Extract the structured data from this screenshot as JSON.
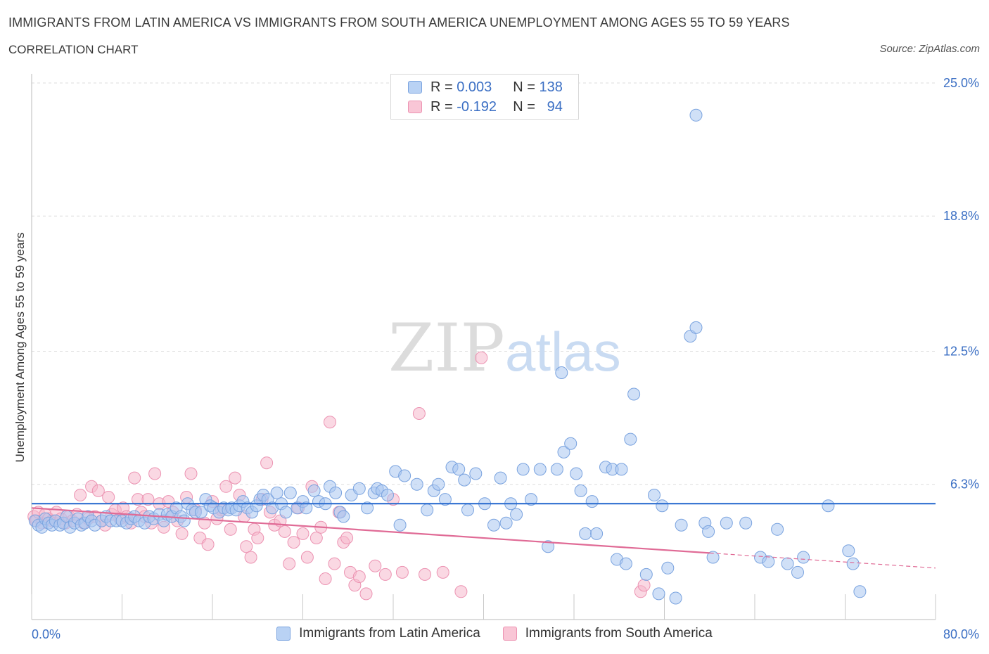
{
  "title": "IMMIGRANTS FROM LATIN AMERICA VS IMMIGRANTS FROM SOUTH AMERICA UNEMPLOYMENT AMONG AGES 55 TO 59 YEARS",
  "subtitle": "CORRELATION CHART",
  "source": "Source: ZipAtlas.com",
  "watermark": {
    "zip": "ZIP",
    "atlas": "atlas"
  },
  "colors": {
    "blue_fill": "#aac6f0",
    "blue_stroke": "#7aa3df",
    "blue_line": "#2f6fd0",
    "pink_fill": "#f6b8cc",
    "pink_stroke": "#ec93b2",
    "pink_line": "#e06b96",
    "axis_label": "#3b6fc4",
    "grid": "#dddddd"
  },
  "legend": {
    "rows": [
      {
        "r_label": "R =",
        "r_value": "0.003",
        "n_label": "N =",
        "n_value": "138"
      },
      {
        "r_label": "R =",
        "r_value": "-0.192",
        "n_label": "N =",
        "n_value": "94"
      }
    ]
  },
  "bottom_legend": [
    "Immigrants from Latin America",
    "Immigrants from South America"
  ],
  "chart_data": {
    "type": "scatter",
    "ylabel": "Unemployment Among Ages 55 to 59 years",
    "xlim": [
      0,
      80
    ],
    "ylim": [
      0,
      25.0
    ],
    "x_tick_labels": [
      "0.0%",
      "80.0%"
    ],
    "y_ticks": [
      6.3,
      12.5,
      18.8,
      25.0
    ],
    "y_tick_labels": [
      "6.3%",
      "12.5%",
      "18.8%",
      "25.0%"
    ],
    "grid": "horizontal dashed",
    "legend_position": "top-center",
    "series": [
      {
        "name": "Immigrants from Latin America",
        "color": "blue",
        "trend": {
          "x": [
            0,
            80
          ],
          "y": [
            5.4,
            5.4
          ],
          "solid_until": 80
        },
        "points": [
          [
            0.3,
            4.6
          ],
          [
            0.6,
            4.4
          ],
          [
            0.9,
            4.3
          ],
          [
            1.2,
            4.7
          ],
          [
            1.5,
            4.5
          ],
          [
            1.8,
            4.4
          ],
          [
            2.1,
            4.6
          ],
          [
            2.5,
            4.4
          ],
          [
            2.8,
            4.5
          ],
          [
            3.1,
            4.8
          ],
          [
            3.4,
            4.3
          ],
          [
            3.8,
            4.5
          ],
          [
            4.1,
            4.7
          ],
          [
            4.4,
            4.4
          ],
          [
            4.7,
            4.5
          ],
          [
            5.0,
            4.8
          ],
          [
            5.3,
            4.6
          ],
          [
            5.6,
            4.4
          ],
          [
            6.2,
            4.6
          ],
          [
            6.6,
            4.8
          ],
          [
            7.0,
            4.6
          ],
          [
            7.5,
            4.6
          ],
          [
            8.0,
            4.6
          ],
          [
            8.4,
            4.5
          ],
          [
            8.8,
            4.7
          ],
          [
            9.1,
            4.8
          ],
          [
            9.5,
            4.6
          ],
          [
            10.0,
            4.5
          ],
          [
            10.4,
            4.8
          ],
          [
            10.8,
            4.7
          ],
          [
            11.3,
            4.9
          ],
          [
            11.7,
            4.6
          ],
          [
            12.0,
            4.9
          ],
          [
            12.4,
            4.8
          ],
          [
            12.8,
            5.2
          ],
          [
            13.2,
            4.8
          ],
          [
            13.5,
            4.6
          ],
          [
            13.8,
            5.4
          ],
          [
            14.2,
            5.1
          ],
          [
            14.5,
            5.0
          ],
          [
            15.0,
            5.0
          ],
          [
            15.4,
            5.6
          ],
          [
            15.8,
            5.3
          ],
          [
            16.1,
            5.2
          ],
          [
            16.6,
            5.0
          ],
          [
            17.0,
            5.2
          ],
          [
            17.4,
            5.1
          ],
          [
            17.7,
            5.2
          ],
          [
            18.1,
            5.1
          ],
          [
            18.4,
            5.3
          ],
          [
            18.7,
            5.5
          ],
          [
            19.1,
            5.2
          ],
          [
            19.5,
            5.0
          ],
          [
            19.9,
            5.3
          ],
          [
            20.2,
            5.6
          ],
          [
            20.5,
            5.8
          ],
          [
            20.9,
            5.6
          ],
          [
            21.3,
            5.2
          ],
          [
            21.7,
            5.9
          ],
          [
            22.1,
            5.4
          ],
          [
            22.5,
            5.0
          ],
          [
            22.9,
            5.9
          ],
          [
            23.5,
            5.2
          ],
          [
            24.0,
            5.5
          ],
          [
            24.3,
            5.2
          ],
          [
            25.0,
            6.0
          ],
          [
            25.4,
            5.5
          ],
          [
            26.0,
            5.4
          ],
          [
            26.4,
            6.2
          ],
          [
            26.9,
            5.9
          ],
          [
            27.3,
            5.0
          ],
          [
            27.6,
            4.8
          ],
          [
            28.3,
            5.8
          ],
          [
            29.0,
            6.1
          ],
          [
            29.7,
            5.2
          ],
          [
            30.3,
            5.9
          ],
          [
            30.6,
            6.1
          ],
          [
            31.0,
            6.0
          ],
          [
            31.5,
            5.8
          ],
          [
            32.2,
            6.9
          ],
          [
            32.6,
            4.4
          ],
          [
            33.0,
            6.7
          ],
          [
            34.1,
            6.3
          ],
          [
            35.0,
            5.1
          ],
          [
            35.6,
            6.0
          ],
          [
            36.0,
            6.3
          ],
          [
            36.6,
            5.6
          ],
          [
            37.2,
            7.1
          ],
          [
            37.8,
            7.0
          ],
          [
            38.3,
            6.5
          ],
          [
            38.6,
            5.1
          ],
          [
            39.3,
            6.8
          ],
          [
            40.1,
            5.4
          ],
          [
            40.9,
            4.4
          ],
          [
            41.5,
            6.6
          ],
          [
            42.0,
            4.5
          ],
          [
            42.4,
            5.4
          ],
          [
            42.9,
            4.9
          ],
          [
            43.5,
            7.0
          ],
          [
            44.2,
            5.6
          ],
          [
            45.0,
            7.0
          ],
          [
            45.7,
            3.4
          ],
          [
            46.5,
            7.0
          ],
          [
            46.9,
            11.5
          ],
          [
            47.1,
            7.8
          ],
          [
            47.7,
            8.2
          ],
          [
            48.2,
            6.8
          ],
          [
            48.6,
            6.0
          ],
          [
            49.0,
            4.0
          ],
          [
            49.6,
            5.5
          ],
          [
            50.0,
            4.0
          ],
          [
            50.8,
            7.1
          ],
          [
            51.4,
            7.0
          ],
          [
            51.8,
            2.8
          ],
          [
            52.2,
            7.0
          ],
          [
            52.6,
            2.6
          ],
          [
            53.0,
            8.4
          ],
          [
            53.3,
            10.5
          ],
          [
            54.4,
            2.1
          ],
          [
            55.1,
            5.8
          ],
          [
            55.5,
            1.2
          ],
          [
            55.8,
            5.3
          ],
          [
            56.3,
            2.4
          ],
          [
            57.0,
            1.0
          ],
          [
            57.5,
            4.4
          ],
          [
            58.3,
            13.2
          ],
          [
            58.8,
            13.6
          ],
          [
            58.8,
            23.5
          ],
          [
            59.6,
            4.5
          ],
          [
            59.9,
            4.1
          ],
          [
            60.3,
            2.9
          ],
          [
            61.5,
            4.5
          ],
          [
            63.2,
            4.5
          ],
          [
            64.5,
            2.9
          ],
          [
            65.2,
            2.7
          ],
          [
            66.0,
            4.2
          ],
          [
            66.9,
            2.6
          ],
          [
            67.8,
            2.2
          ],
          [
            68.3,
            2.9
          ],
          [
            70.5,
            5.3
          ],
          [
            72.3,
            3.2
          ],
          [
            72.7,
            2.6
          ],
          [
            73.3,
            1.3
          ]
        ]
      },
      {
        "name": "Immigrants from South America",
        "color": "pink",
        "trend": {
          "x": [
            0,
            80
          ],
          "y": [
            5.2,
            2.4
          ],
          "solid_until": 60
        },
        "points": [
          [
            0.2,
            4.8
          ],
          [
            0.4,
            4.6
          ],
          [
            0.6,
            5.0
          ],
          [
            0.9,
            4.5
          ],
          [
            1.2,
            4.9
          ],
          [
            1.5,
            4.7
          ],
          [
            1.8,
            4.6
          ],
          [
            2.2,
            5.0
          ],
          [
            2.6,
            4.7
          ],
          [
            3.0,
            4.5
          ],
          [
            3.3,
            4.8
          ],
          [
            3.6,
            4.6
          ],
          [
            4.0,
            4.9
          ],
          [
            4.3,
            5.8
          ],
          [
            4.6,
            4.5
          ],
          [
            5.0,
            4.7
          ],
          [
            5.3,
            6.2
          ],
          [
            5.6,
            4.8
          ],
          [
            5.9,
            6.0
          ],
          [
            6.2,
            4.6
          ],
          [
            6.5,
            4.4
          ],
          [
            6.8,
            5.7
          ],
          [
            7.1,
            4.9
          ],
          [
            7.4,
            5.1
          ],
          [
            7.8,
            4.7
          ],
          [
            8.1,
            5.2
          ],
          [
            8.4,
            4.8
          ],
          [
            8.8,
            4.5
          ],
          [
            9.1,
            6.6
          ],
          [
            9.4,
            5.6
          ],
          [
            9.7,
            5.0
          ],
          [
            10.0,
            4.8
          ],
          [
            10.3,
            5.6
          ],
          [
            10.6,
            4.5
          ],
          [
            10.9,
            6.8
          ],
          [
            11.3,
            5.4
          ],
          [
            11.7,
            4.3
          ],
          [
            12.1,
            5.5
          ],
          [
            12.5,
            5.0
          ],
          [
            12.9,
            4.6
          ],
          [
            13.3,
            4.0
          ],
          [
            13.7,
            5.7
          ],
          [
            14.1,
            6.8
          ],
          [
            14.5,
            5.1
          ],
          [
            14.9,
            3.8
          ],
          [
            15.3,
            4.5
          ],
          [
            15.6,
            3.5
          ],
          [
            16.0,
            5.5
          ],
          [
            16.4,
            4.7
          ],
          [
            16.8,
            5.1
          ],
          [
            17.2,
            6.2
          ],
          [
            17.6,
            4.2
          ],
          [
            18.0,
            6.6
          ],
          [
            18.4,
            5.8
          ],
          [
            18.8,
            4.8
          ],
          [
            19.0,
            3.4
          ],
          [
            19.4,
            2.9
          ],
          [
            19.7,
            4.2
          ],
          [
            20.0,
            3.8
          ],
          [
            20.4,
            5.6
          ],
          [
            20.8,
            7.3
          ],
          [
            21.1,
            5.0
          ],
          [
            21.5,
            4.4
          ],
          [
            22.0,
            4.6
          ],
          [
            22.4,
            4.1
          ],
          [
            22.8,
            2.6
          ],
          [
            23.2,
            3.6
          ],
          [
            23.6,
            5.2
          ],
          [
            24.0,
            4.0
          ],
          [
            24.4,
            2.9
          ],
          [
            24.8,
            6.2
          ],
          [
            25.2,
            3.8
          ],
          [
            25.6,
            4.3
          ],
          [
            26.0,
            1.9
          ],
          [
            26.4,
            9.2
          ],
          [
            26.8,
            2.6
          ],
          [
            27.2,
            5.0
          ],
          [
            27.6,
            3.6
          ],
          [
            27.9,
            3.8
          ],
          [
            28.2,
            2.2
          ],
          [
            28.6,
            1.6
          ],
          [
            29.0,
            2.0
          ],
          [
            29.6,
            1.2
          ],
          [
            30.4,
            2.5
          ],
          [
            31.3,
            2.1
          ],
          [
            32.0,
            5.6
          ],
          [
            32.8,
            2.2
          ],
          [
            34.3,
            9.6
          ],
          [
            34.8,
            2.1
          ],
          [
            36.4,
            2.2
          ],
          [
            38.0,
            1.3
          ],
          [
            39.8,
            12.2
          ],
          [
            53.9,
            1.3
          ],
          [
            54.2,
            1.6
          ]
        ]
      }
    ]
  }
}
